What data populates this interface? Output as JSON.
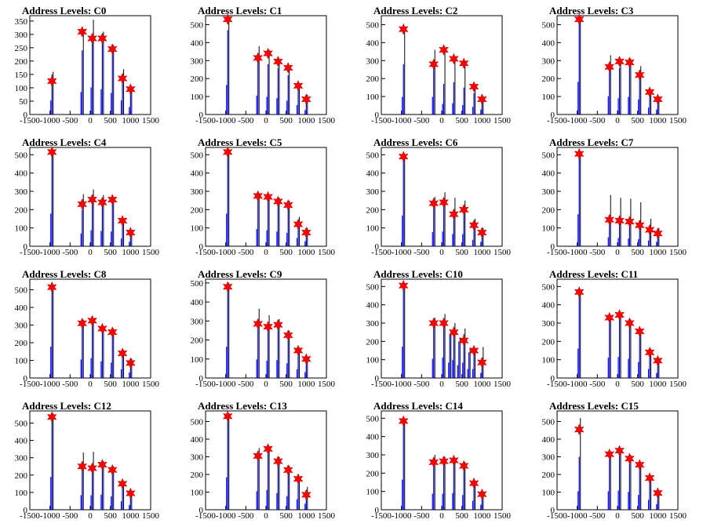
{
  "chart_data": [
    {
      "type": "bar",
      "title": "Address Levels: C0",
      "xlim": [
        -1500,
        1500
      ],
      "xticks": [
        -1500,
        -1000,
        -500,
        0,
        500,
        1000,
        1500
      ],
      "ylim": [
        0,
        370
      ],
      "yticks": [
        0,
        50,
        100,
        150,
        200,
        250,
        300,
        350
      ],
      "x": [
        -950,
        -200,
        50,
        300,
        550,
        800,
        1000
      ],
      "black_values": [
        160,
        320,
        355,
        310,
        260,
        170,
        100
      ],
      "blue_values": [
        150,
        240,
        290,
        270,
        230,
        150,
        80
      ],
      "marker_values": [
        125,
        310,
        285,
        285,
        245,
        135,
        95
      ]
    },
    {
      "type": "bar",
      "title": "Address Levels: C1",
      "xlim": [
        -1500,
        1500
      ],
      "xticks": [
        -1500,
        -1000,
        -500,
        0,
        500,
        1000,
        1500
      ],
      "ylim": [
        0,
        550
      ],
      "yticks": [
        0,
        100,
        200,
        300,
        400,
        500
      ],
      "x": [
        -950,
        -200,
        50,
        300,
        550,
        800,
        1000
      ],
      "black_values": [
        545,
        380,
        360,
        305,
        270,
        170,
        110
      ],
      "blue_values": [
        470,
        300,
        280,
        260,
        220,
        150,
        70
      ],
      "marker_values": [
        530,
        315,
        340,
        295,
        260,
        160,
        85
      ]
    },
    {
      "type": "bar",
      "title": "Address Levels: C2",
      "xlim": [
        -1500,
        1500
      ],
      "xticks": [
        -1500,
        -1000,
        -500,
        0,
        500,
        1000,
        1500
      ],
      "ylim": [
        0,
        550
      ],
      "yticks": [
        0,
        100,
        200,
        300,
        400,
        500
      ],
      "x": [
        -950,
        -200,
        50,
        300,
        550,
        800,
        1000
      ],
      "black_values": [
        490,
        360,
        375,
        320,
        300,
        170,
        100
      ],
      "blue_values": [
        280,
        280,
        170,
        180,
        150,
        120,
        80
      ],
      "marker_values": [
        475,
        280,
        360,
        310,
        285,
        155,
        85
      ]
    },
    {
      "type": "bar",
      "title": "Address Levels: C3",
      "xlim": [
        -1500,
        1500
      ],
      "xticks": [
        -1500,
        -1000,
        -500,
        0,
        500,
        1000,
        1500
      ],
      "ylim": [
        0,
        550
      ],
      "yticks": [
        0,
        100,
        200,
        300,
        400,
        500
      ],
      "x": [
        -950,
        -200,
        50,
        300,
        550,
        800,
        1000
      ],
      "black_values": [
        545,
        330,
        300,
        310,
        270,
        140,
        100
      ],
      "blue_values": [
        520,
        290,
        260,
        280,
        240,
        110,
        80
      ],
      "marker_values": [
        530,
        265,
        295,
        290,
        220,
        125,
        85
      ]
    },
    {
      "type": "bar",
      "title": "Address Levels: C4",
      "xlim": [
        -1500,
        1500
      ],
      "xticks": [
        -1500,
        -1000,
        -500,
        0,
        500,
        1000,
        1500
      ],
      "ylim": [
        0,
        540
      ],
      "yticks": [
        0,
        100,
        200,
        300,
        400,
        500
      ],
      "x": [
        -950,
        -200,
        50,
        300,
        550,
        800,
        1000
      ],
      "black_values": [
        525,
        285,
        310,
        280,
        270,
        150,
        90
      ],
      "blue_values": [
        510,
        200,
        250,
        240,
        230,
        120,
        70
      ],
      "marker_values": [
        515,
        230,
        255,
        240,
        255,
        140,
        75
      ]
    },
    {
      "type": "bar",
      "title": "Address Levels: C5",
      "xlim": [
        -1500,
        1500
      ],
      "xticks": [
        -1500,
        -1000,
        -500,
        0,
        500,
        1000,
        1500
      ],
      "ylim": [
        0,
        540
      ],
      "yticks": [
        0,
        100,
        200,
        300,
        400,
        500
      ],
      "x": [
        -950,
        -200,
        50,
        300,
        550,
        800,
        1000
      ],
      "black_values": [
        525,
        290,
        280,
        265,
        250,
        160,
        100
      ],
      "blue_values": [
        510,
        270,
        250,
        230,
        210,
        130,
        80
      ],
      "marker_values": [
        515,
        275,
        270,
        245,
        225,
        120,
        75
      ]
    },
    {
      "type": "bar",
      "title": "Address Levels: C6",
      "xlim": [
        -1500,
        1500
      ],
      "xticks": [
        -1500,
        -1000,
        -500,
        0,
        500,
        1000,
        1500
      ],
      "ylim": [
        0,
        540
      ],
      "yticks": [
        0,
        100,
        200,
        300,
        400,
        500
      ],
      "x": [
        -950,
        -200,
        50,
        300,
        550,
        800,
        1000
      ],
      "black_values": [
        500,
        270,
        295,
        265,
        250,
        150,
        100
      ],
      "blue_values": [
        480,
        220,
        230,
        190,
        190,
        100,
        70
      ],
      "marker_values": [
        490,
        235,
        240,
        175,
        200,
        115,
        75
      ]
    },
    {
      "type": "bar",
      "title": "Address Levels: C7",
      "xlim": [
        -1500,
        1500
      ],
      "xticks": [
        -1500,
        -1000,
        -500,
        0,
        500,
        1000,
        1500
      ],
      "ylim": [
        0,
        540
      ],
      "yticks": [
        0,
        100,
        200,
        300,
        400,
        500
      ],
      "x": [
        -950,
        -200,
        50,
        300,
        550,
        800,
        1000
      ],
      "black_values": [
        520,
        280,
        265,
        260,
        240,
        150,
        100
      ],
      "blue_values": [
        500,
        140,
        130,
        120,
        110,
        90,
        70
      ],
      "marker_values": [
        505,
        145,
        140,
        135,
        115,
        90,
        70
      ]
    },
    {
      "type": "bar",
      "title": "Address Levels: C8",
      "xlim": [
        -1500,
        1500
      ],
      "xticks": [
        -1500,
        -1000,
        -500,
        0,
        500,
        1000,
        1500
      ],
      "ylim": [
        0,
        560
      ],
      "yticks": [
        0,
        100,
        200,
        300,
        400,
        500
      ],
      "x": [
        -950,
        -200,
        50,
        300,
        550,
        800,
        1000
      ],
      "black_values": [
        530,
        330,
        340,
        290,
        280,
        160,
        110
      ],
      "blue_values": [
        510,
        300,
        320,
        270,
        250,
        140,
        90
      ],
      "marker_values": [
        515,
        310,
        325,
        280,
        260,
        140,
        85
      ]
    },
    {
      "type": "bar",
      "title": "Address Levels: C9",
      "xlim": [
        -1500,
        1500
      ],
      "xticks": [
        -1500,
        -1000,
        -500,
        0,
        500,
        1000,
        1500
      ],
      "ylim": [
        0,
        520
      ],
      "yticks": [
        0,
        100,
        200,
        300,
        400,
        500
      ],
      "x": [
        -950,
        -200,
        50,
        300,
        550,
        800,
        1000
      ],
      "black_values": [
        500,
        365,
        330,
        310,
        250,
        160,
        110
      ],
      "blue_values": [
        470,
        280,
        260,
        270,
        220,
        130,
        90
      ],
      "marker_values": [
        480,
        285,
        270,
        280,
        225,
        145,
        100
      ]
    },
    {
      "type": "bar",
      "title": "Address Levels: C10",
      "xlim": [
        -1500,
        1500
      ],
      "xticks": [
        -1500,
        -1000,
        -500,
        0,
        500,
        1000,
        1500
      ],
      "ylim": [
        0,
        540
      ],
      "yticks": [
        0,
        100,
        200,
        300,
        400,
        500
      ],
      "x": [
        -950,
        -200,
        50,
        300,
        550,
        800,
        1000,
        200,
        425,
        675
      ],
      "black_values": [
        515,
        330,
        350,
        300,
        270,
        160,
        170,
        260,
        220,
        160
      ],
      "blue_values": [
        490,
        300,
        320,
        280,
        240,
        140,
        80,
        240,
        200,
        140
      ],
      "marker_values": [
        505,
        300,
        300,
        250,
        205,
        150,
        85,
        null,
        null,
        null
      ]
    },
    {
      "type": "bar",
      "title": "Address Levels: C11",
      "xlim": [
        -1500,
        1500
      ],
      "xticks": [
        -1500,
        -1000,
        -500,
        0,
        500,
        1000,
        1500
      ],
      "ylim": [
        0,
        540
      ],
      "yticks": [
        0,
        100,
        200,
        300,
        400,
        500
      ],
      "x": [
        -950,
        -200,
        50,
        300,
        550,
        800,
        1000
      ],
      "black_values": [
        480,
        340,
        355,
        320,
        270,
        160,
        100
      ],
      "blue_values": [
        460,
        320,
        330,
        300,
        250,
        140,
        80
      ],
      "marker_values": [
        470,
        330,
        345,
        300,
        255,
        140,
        95
      ]
    },
    {
      "type": "bar",
      "title": "Address Levels: C12",
      "xlim": [
        -1500,
        1500
      ],
      "xticks": [
        -1500,
        -1000,
        -500,
        0,
        500,
        1000,
        1500
      ],
      "ylim": [
        0,
        570
      ],
      "yticks": [
        0,
        100,
        200,
        300,
        400,
        500
      ],
      "x": [
        -950,
        -200,
        50,
        300,
        550,
        800,
        1000
      ],
      "black_values": [
        555,
        330,
        335,
        280,
        250,
        160,
        100
      ],
      "blue_values": [
        540,
        240,
        240,
        250,
        220,
        140,
        80
      ],
      "marker_values": [
        535,
        250,
        240,
        260,
        230,
        150,
        95
      ]
    },
    {
      "type": "bar",
      "title": "Address Levels: C13",
      "xlim": [
        -1500,
        1500
      ],
      "xticks": [
        -1500,
        -1000,
        -500,
        0,
        500,
        1000,
        1500
      ],
      "ylim": [
        0,
        560
      ],
      "yticks": [
        0,
        100,
        200,
        300,
        400,
        500
      ],
      "x": [
        -950,
        -200,
        50,
        300,
        550,
        800,
        1000
      ],
      "black_values": [
        545,
        350,
        360,
        300,
        250,
        190,
        130
      ],
      "blue_values": [
        525,
        300,
        320,
        270,
        220,
        170,
        100
      ],
      "marker_values": [
        530,
        305,
        345,
        275,
        225,
        175,
        85
      ]
    },
    {
      "type": "bar",
      "title": "Address Levels: C14",
      "xlim": [
        -1500,
        1500
      ],
      "xticks": [
        -1500,
        -1000,
        -500,
        0,
        500,
        1000,
        1500
      ],
      "ylim": [
        0,
        540
      ],
      "yticks": [
        0,
        100,
        200,
        300,
        400,
        500
      ],
      "x": [
        -950,
        -200,
        50,
        300,
        550,
        800,
        1000
      ],
      "black_values": [
        500,
        300,
        290,
        280,
        260,
        160,
        100
      ],
      "blue_values": [
        470,
        250,
        250,
        260,
        230,
        140,
        80
      ],
      "marker_values": [
        485,
        260,
        265,
        270,
        240,
        145,
        85
      ]
    },
    {
      "type": "bar",
      "title": "Address Levels: C15",
      "xlim": [
        -1500,
        1500
      ],
      "xticks": [
        -1500,
        -1000,
        -500,
        0,
        500,
        1000,
        1500
      ],
      "ylim": [
        0,
        560
      ],
      "yticks": [
        0,
        100,
        200,
        300,
        400,
        500
      ],
      "x": [
        -950,
        -200,
        50,
        300,
        550,
        800,
        1000
      ],
      "black_values": [
        520,
        330,
        350,
        310,
        270,
        190,
        110
      ],
      "blue_values": [
        300,
        300,
        310,
        290,
        240,
        160,
        90
      ],
      "marker_values": [
        455,
        315,
        335,
        290,
        255,
        180,
        95
      ]
    }
  ]
}
